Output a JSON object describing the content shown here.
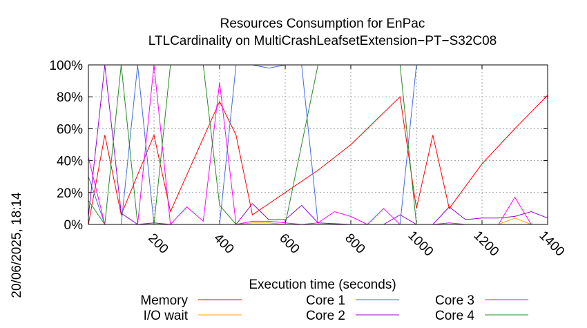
{
  "chart_data": {
    "type": "line",
    "title": "Resources Consumption for EnPac",
    "subtitle": "LTLCardinality on MultiCrashLeafsetExtension−PT−S32C08",
    "xlabel": "Execution time (seconds)",
    "ylabel": "",
    "xlim": [
      0,
      1400
    ],
    "ylim": [
      0,
      100
    ],
    "x_ticks": [
      {
        "value": 200,
        "label": "200"
      },
      {
        "value": 400,
        "label": "400"
      },
      {
        "value": 600,
        "label": "600"
      },
      {
        "value": 800,
        "label": "800"
      },
      {
        "value": 1000,
        "label": "1000"
      },
      {
        "value": 1200,
        "label": "1200"
      },
      {
        "value": 1400,
        "label": "1400"
      }
    ],
    "y_ticks": [
      {
        "value": 0,
        "label": "0%"
      },
      {
        "value": 20,
        "label": "20%"
      },
      {
        "value": 40,
        "label": "40%"
      },
      {
        "value": 60,
        "label": "60%"
      },
      {
        "value": 80,
        "label": "80%"
      },
      {
        "value": 100,
        "label": "100%"
      }
    ],
    "grid": true,
    "legend_position": "bottom",
    "date_stamp": "20/06/2025, 18:14",
    "series": [
      {
        "name": "Memory",
        "color": "#ff0000",
        "x": [
          0,
          50,
          100,
          200,
          250,
          400,
          450,
          500,
          600,
          700,
          800,
          950,
          1000,
          1050,
          1100,
          1150,
          1200,
          1300,
          1400
        ],
        "y": [
          0,
          56,
          6,
          56,
          8,
          77,
          56,
          6,
          20,
          34,
          50,
          80,
          10,
          56,
          10,
          24,
          38,
          60,
          81
        ]
      },
      {
        "name": "I/O wait",
        "color": "#ffa500",
        "x": [
          0,
          50,
          100,
          150,
          200,
          300,
          400,
          450,
          500,
          550,
          600,
          700,
          800,
          900,
          1000,
          1100,
          1200,
          1250,
          1300,
          1350,
          1400
        ],
        "y": [
          0,
          0,
          0,
          0,
          0,
          0,
          0,
          0,
          1,
          1,
          0,
          0,
          0,
          0,
          0,
          0,
          0,
          0,
          4,
          0,
          0
        ]
      },
      {
        "name": "Core 1",
        "color": "#4169e1",
        "x": [
          0,
          50,
          100,
          150,
          200,
          300,
          400,
          450,
          500,
          550,
          600,
          650,
          700,
          800,
          900,
          950,
          1000,
          1050,
          1100,
          1200,
          1300,
          1400
        ],
        "y": [
          30,
          0,
          0,
          100,
          0,
          0,
          0,
          100,
          100,
          98,
          100,
          100,
          0,
          0,
          0,
          0,
          100,
          100,
          100,
          100,
          100,
          100
        ]
      },
      {
        "name": "Core 2",
        "color": "#9400d3",
        "x": [
          0,
          50,
          100,
          150,
          200,
          250,
          300,
          350,
          400,
          450,
          500,
          550,
          600,
          650,
          700,
          800,
          900,
          950,
          1000,
          1050,
          1100,
          1150,
          1200,
          1250,
          1300,
          1350,
          1400
        ],
        "y": [
          5,
          100,
          7,
          0,
          1,
          0,
          0,
          0,
          0,
          0,
          13,
          3,
          3,
          12,
          1,
          0,
          0,
          6,
          0,
          0,
          11,
          3,
          4,
          4,
          5,
          8,
          4
        ]
      },
      {
        "name": "Core 3",
        "color": "#ff00ff",
        "x": [
          0,
          50,
          100,
          150,
          200,
          250,
          300,
          350,
          400,
          450,
          500,
          550,
          600,
          650,
          700,
          750,
          800,
          850,
          900,
          950,
          1000,
          1050,
          1100,
          1150,
          1200,
          1250,
          1300,
          1350,
          1400
        ],
        "y": [
          42,
          0,
          0,
          0,
          100,
          0,
          11,
          2,
          89,
          0,
          2,
          2,
          1,
          0,
          1,
          8,
          5,
          0,
          10,
          0,
          0,
          0,
          1,
          0,
          0,
          0,
          17,
          0,
          0
        ]
      },
      {
        "name": "Core 4",
        "color": "#228b22",
        "x": [
          0,
          50,
          100,
          150,
          200,
          250,
          300,
          350,
          400,
          450,
          500,
          600,
          700,
          800,
          900,
          950,
          1000,
          1100,
          1200,
          1300,
          1400
        ],
        "y": [
          15,
          0,
          100,
          0,
          0,
          100,
          100,
          100,
          12,
          0,
          0,
          0,
          100,
          100,
          100,
          100,
          0,
          0,
          0,
          0,
          0
        ]
      }
    ]
  }
}
